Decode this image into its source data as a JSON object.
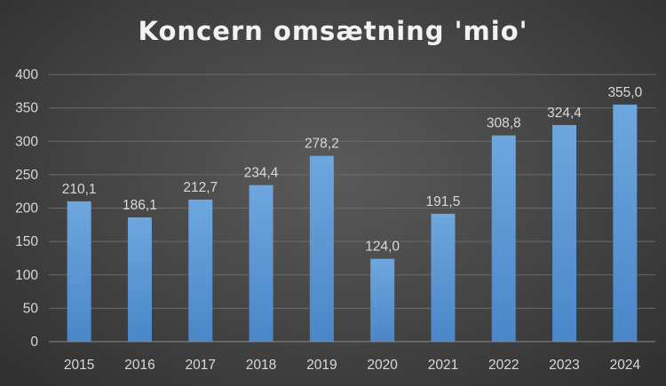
{
  "chart_data": {
    "type": "bar",
    "title": "Koncern omsætning 'mio'",
    "categories": [
      "2015",
      "2016",
      "2017",
      "2018",
      "2019",
      "2020",
      "2021",
      "2022",
      "2023",
      "2024"
    ],
    "values": [
      210.1,
      186.1,
      212.7,
      234.4,
      278.2,
      124.0,
      191.5,
      308.8,
      324.4,
      355.0
    ],
    "data_labels": [
      "210,1",
      "186,1",
      "212,7",
      "234,4",
      "278,2",
      "124,0",
      "191,5",
      "308,8",
      "324,4",
      "355,0"
    ],
    "ylim": [
      0,
      400
    ],
    "yticks": [
      0,
      50,
      100,
      150,
      200,
      250,
      300,
      350,
      400
    ],
    "grid": true,
    "legend": "none",
    "colors": {
      "bar_top": "#6ea6de",
      "bar_bottom": "#4a86c8",
      "grid": "#6b6b6b",
      "text": "#d9d9d9",
      "title": "#f2f2f2"
    }
  }
}
